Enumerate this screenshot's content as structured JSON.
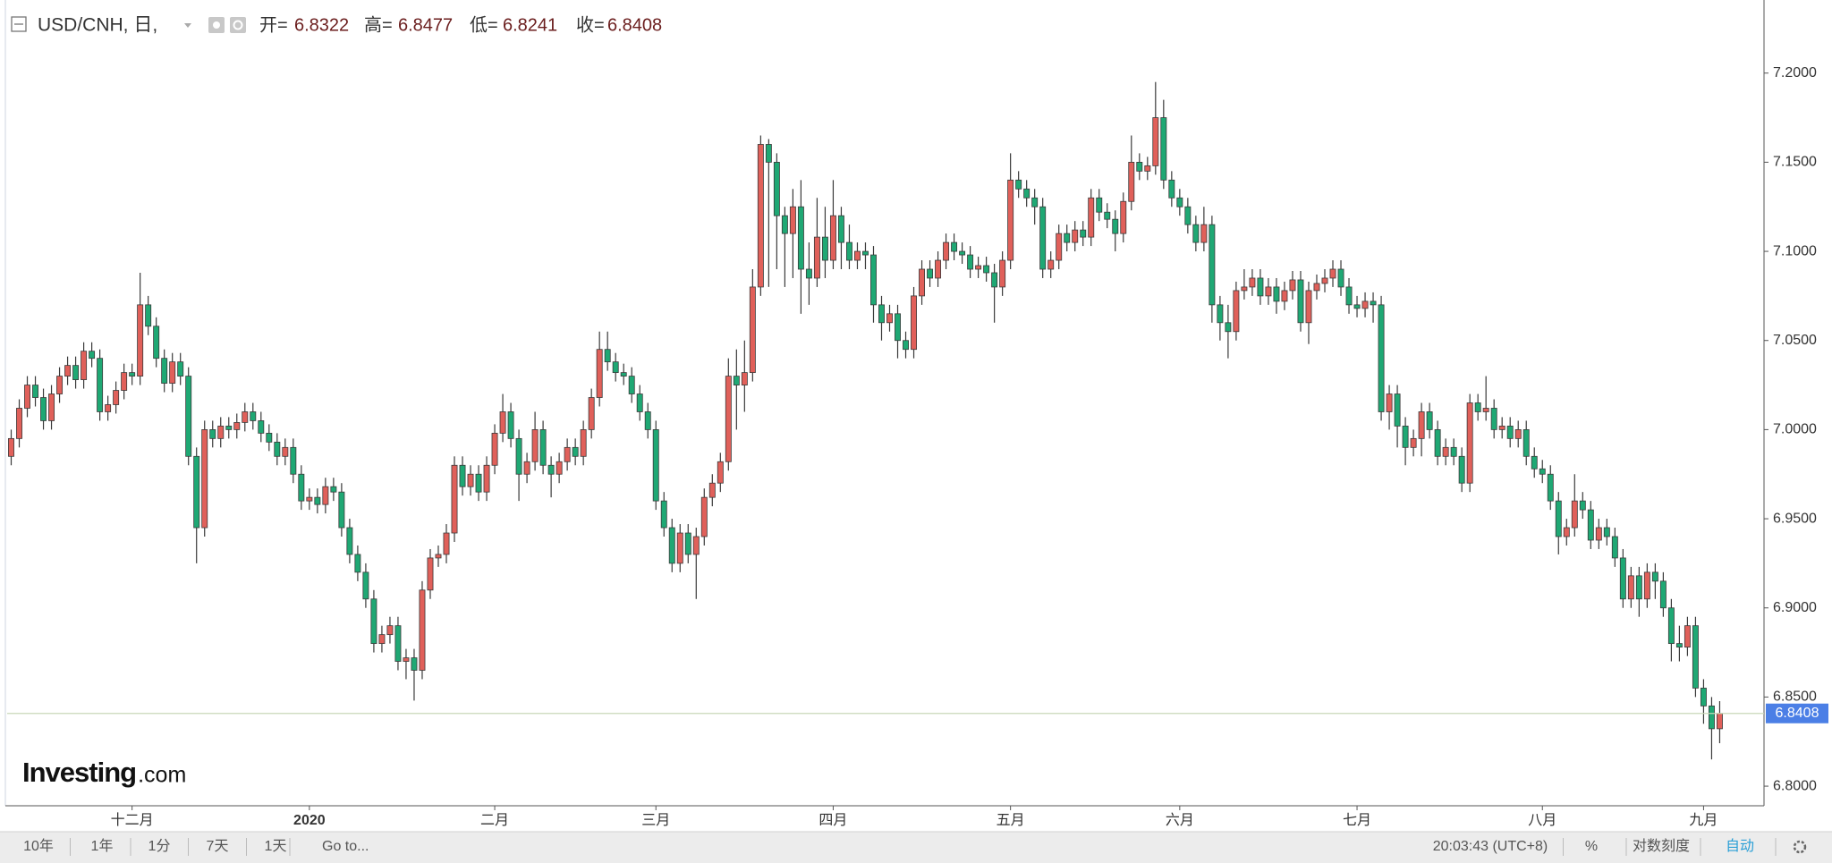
{
  "chart_data": {
    "type": "candlestick",
    "title": "USD/CNH, 日,",
    "ohlc_labels": [
      "开=",
      "高=",
      "低=",
      "收="
    ],
    "watermark": {
      "brand": "Investing",
      "suffix": ".com"
    },
    "up_color": "#e0605a",
    "down_color": "#1fa874",
    "last_price_color": "#4b7fe6",
    "grid": false,
    "ylim": [
      6.789,
      7.241
    ],
    "yticks": [
      {
        "value": 6.8,
        "label": "6.8000"
      },
      {
        "value": 6.85,
        "label": "6.8500"
      },
      {
        "value": 6.9,
        "label": "6.9000"
      },
      {
        "value": 6.95,
        "label": "6.9500"
      },
      {
        "value": 7.0,
        "label": "7.0000"
      },
      {
        "value": 7.05,
        "label": "7.0500"
      },
      {
        "value": 7.1,
        "label": "7.1000"
      },
      {
        "value": 7.15,
        "label": "7.1500"
      },
      {
        "value": 7.2,
        "label": "7.2000"
      }
    ],
    "categories": [
      null,
      null,
      null,
      null,
      null,
      null,
      null,
      null,
      null,
      null,
      null,
      null,
      null,
      null,
      null,
      "十二月",
      null,
      null,
      null,
      null,
      null,
      null,
      null,
      null,
      null,
      null,
      null,
      null,
      null,
      null,
      null,
      null,
      null,
      null,
      null,
      null,
      null,
      "2020",
      null,
      null,
      null,
      null,
      null,
      null,
      null,
      null,
      null,
      null,
      null,
      null,
      null,
      null,
      null,
      null,
      null,
      null,
      null,
      null,
      null,
      null,
      "二月",
      null,
      null,
      null,
      null,
      null,
      null,
      null,
      null,
      null,
      null,
      null,
      null,
      null,
      null,
      null,
      null,
      null,
      null,
      null,
      "三月",
      null,
      null,
      null,
      null,
      null,
      null,
      null,
      null,
      null,
      null,
      null,
      null,
      null,
      null,
      null,
      null,
      null,
      null,
      null,
      null,
      null,
      "四月",
      null,
      null,
      null,
      null,
      null,
      null,
      null,
      null,
      null,
      null,
      null,
      null,
      null,
      null,
      null,
      null,
      null,
      null,
      null,
      null,
      null,
      "五月",
      null,
      null,
      null,
      null,
      null,
      null,
      null,
      null,
      null,
      null,
      null,
      null,
      null,
      null,
      null,
      null,
      null,
      null,
      null,
      null,
      "六月",
      null,
      null,
      null,
      null,
      null,
      null,
      null,
      null,
      null,
      null,
      null,
      null,
      null,
      null,
      null,
      null,
      null,
      null,
      null,
      null,
      null,
      "七月",
      null,
      null,
      null,
      null,
      null,
      null,
      null,
      null,
      null,
      null,
      null,
      null,
      null,
      null,
      null,
      null,
      null,
      null,
      null,
      null,
      null,
      null,
      "八月",
      null,
      null,
      null,
      null,
      null,
      null,
      null,
      null,
      null,
      null,
      null,
      null,
      null,
      null,
      null,
      null,
      null,
      null,
      null,
      "九月",
      null,
      null
    ],
    "open": [
      6.985,
      6.995,
      7.012,
      7.025,
      7.018,
      7.005,
      7.02,
      7.03,
      7.036,
      7.028,
      7.044,
      7.04,
      7.01,
      7.014,
      7.022,
      7.032,
      7.03,
      7.07,
      7.058,
      7.04,
      7.026,
      7.038,
      7.03,
      6.985,
      6.945,
      7.0,
      6.995,
      7.002,
      7.0,
      7.004,
      7.01,
      7.005,
      6.998,
      6.993,
      6.985,
      6.99,
      6.975,
      6.96,
      6.962,
      6.958,
      6.968,
      6.965,
      6.945,
      6.93,
      6.92,
      6.905,
      6.88,
      6.885,
      6.89,
      6.87,
      6.872,
      6.865,
      6.91,
      6.928,
      6.93,
      6.942,
      6.98,
      6.968,
      6.975,
      6.965,
      6.98,
      6.998,
      7.01,
      6.995,
      6.975,
      6.982,
      7.0,
      6.98,
      6.975,
      6.982,
      6.99,
      6.985,
      7.0,
      7.018,
      7.045,
      7.038,
      7.032,
      7.03,
      7.02,
      7.01,
      7.0,
      6.96,
      6.945,
      6.925,
      6.942,
      6.93,
      6.94,
      6.962,
      6.97,
      6.982,
      7.03,
      7.025,
      7.032,
      7.08,
      7.16,
      7.15,
      7.12,
      7.11,
      7.125,
      7.09,
      7.085,
      7.108,
      7.095,
      7.12,
      7.105,
      7.095,
      7.1,
      7.098,
      7.07,
      7.06,
      7.065,
      7.05,
      7.045,
      7.075,
      7.09,
      7.085,
      7.095,
      7.105,
      7.1,
      7.098,
      7.09,
      7.092,
      7.088,
      7.08,
      7.095,
      7.14,
      7.135,
      7.13,
      7.125,
      7.09,
      7.095,
      7.11,
      7.105,
      7.112,
      7.108,
      7.13,
      7.122,
      7.118,
      7.11,
      7.128,
      7.15,
      7.145,
      7.148,
      7.175,
      7.14,
      7.13,
      7.125,
      7.115,
      7.105,
      7.115,
      7.07,
      7.06,
      7.055,
      7.078,
      7.08,
      7.085,
      7.075,
      7.08,
      7.072,
      7.078,
      7.084,
      7.06,
      7.078,
      7.082,
      7.085,
      7.09,
      7.08,
      7.07,
      7.068,
      7.072,
      7.07,
      7.01,
      7.02,
      7.002,
      6.99,
      6.995,
      7.01,
      7.0,
      6.985,
      6.99,
      6.985,
      6.97,
      7.015,
      7.01,
      7.012,
      7.0,
      7.002,
      6.995,
      7.0,
      6.985,
      6.978,
      6.975,
      6.96,
      6.94,
      6.945,
      6.96,
      6.955,
      6.938,
      6.945,
      6.94,
      6.928,
      6.905,
      6.918,
      6.905,
      6.92,
      6.915,
      6.9,
      6.88,
      6.878,
      6.89,
      6.855,
      6.845,
      6.8322
    ],
    "high": [
      7.0,
      7.017,
      7.03,
      7.03,
      7.023,
      7.025,
      7.035,
      7.041,
      7.041,
      7.049,
      7.049,
      7.045,
      7.019,
      7.027,
      7.037,
      7.037,
      7.088,
      7.075,
      7.063,
      7.045,
      7.043,
      7.043,
      7.035,
      6.99,
      7.005,
      7.005,
      7.007,
      7.007,
      7.009,
      7.015,
      7.015,
      7.01,
      7.003,
      6.998,
      6.995,
      6.995,
      6.98,
      6.967,
      6.967,
      6.973,
      6.973,
      6.97,
      6.95,
      6.935,
      6.925,
      6.91,
      6.89,
      6.895,
      6.895,
      6.877,
      6.877,
      6.915,
      6.933,
      6.935,
      6.947,
      6.985,
      6.985,
      6.98,
      6.98,
      6.985,
      7.003,
      7.02,
      7.015,
      7.0,
      6.987,
      7.01,
      7.005,
      6.985,
      6.987,
      6.995,
      6.995,
      7.005,
      7.023,
      7.055,
      7.055,
      7.043,
      7.037,
      7.035,
      7.025,
      7.015,
      7.005,
      6.965,
      6.95,
      6.947,
      6.947,
      6.945,
      6.967,
      6.975,
      6.987,
      7.04,
      7.045,
      7.05,
      7.09,
      7.165,
      7.163,
      7.155,
      7.125,
      7.135,
      7.14,
      7.105,
      7.13,
      7.125,
      7.14,
      7.125,
      7.115,
      7.105,
      7.105,
      7.103,
      7.075,
      7.07,
      7.07,
      7.055,
      7.08,
      7.095,
      7.095,
      7.1,
      7.11,
      7.11,
      7.105,
      7.103,
      7.097,
      7.097,
      7.093,
      7.1,
      7.155,
      7.145,
      7.14,
      7.135,
      7.13,
      7.1,
      7.115,
      7.115,
      7.117,
      7.117,
      7.135,
      7.135,
      7.127,
      7.123,
      7.133,
      7.165,
      7.155,
      7.153,
      7.195,
      7.185,
      7.145,
      7.135,
      7.13,
      7.12,
      7.125,
      7.12,
      7.075,
      7.07,
      7.083,
      7.09,
      7.09,
      7.09,
      7.085,
      7.085,
      7.083,
      7.089,
      7.089,
      7.083,
      7.087,
      7.09,
      7.095,
      7.095,
      7.085,
      7.075,
      7.077,
      7.077,
      7.075,
      7.025,
      7.025,
      7.007,
      7.0,
      7.015,
      7.015,
      7.005,
      6.995,
      6.995,
      6.99,
      7.02,
      7.02,
      7.03,
      7.017,
      7.007,
      7.007,
      7.005,
      7.005,
      6.99,
      6.983,
      6.98,
      6.965,
      6.95,
      6.975,
      6.965,
      6.96,
      6.95,
      6.95,
      6.945,
      6.933,
      6.923,
      6.923,
      6.925,
      6.925,
      6.92,
      6.905,
      6.89,
      6.895,
      6.895,
      6.86,
      6.85,
      6.8477
    ],
    "low": [
      6.98,
      6.99,
      7.007,
      7.013,
      7.0,
      7.0,
      7.015,
      7.025,
      7.023,
      7.023,
      7.035,
      7.005,
      7.005,
      7.009,
      7.017,
      7.025,
      7.025,
      7.053,
      7.035,
      7.021,
      7.021,
      7.025,
      6.98,
      6.925,
      6.94,
      6.99,
      6.99,
      6.995,
      6.995,
      6.999,
      7.0,
      6.993,
      6.988,
      6.98,
      6.98,
      6.97,
      6.955,
      6.955,
      6.953,
      6.953,
      6.96,
      6.94,
      6.925,
      6.915,
      6.9,
      6.875,
      6.875,
      6.88,
      6.865,
      6.86,
      6.848,
      6.86,
      6.905,
      6.923,
      6.925,
      6.937,
      6.963,
      6.963,
      6.96,
      6.96,
      6.975,
      6.993,
      6.99,
      6.96,
      6.97,
      6.977,
      6.975,
      6.962,
      6.97,
      6.977,
      6.98,
      6.98,
      6.995,
      7.013,
      7.033,
      7.027,
      7.025,
      7.015,
      7.005,
      6.995,
      6.955,
      6.94,
      6.92,
      6.92,
      6.925,
      6.905,
      6.935,
      6.957,
      6.965,
      6.977,
      7.0,
      7.01,
      7.027,
      7.075,
      7.08,
      7.09,
      7.08,
      7.085,
      7.065,
      7.07,
      7.08,
      7.085,
      7.09,
      7.09,
      7.09,
      7.09,
      7.09,
      7.06,
      7.05,
      7.055,
      7.04,
      7.04,
      7.04,
      7.07,
      7.08,
      7.08,
      7.09,
      7.095,
      7.093,
      7.085,
      7.085,
      7.083,
      7.06,
      7.075,
      7.09,
      7.13,
      7.125,
      7.115,
      7.085,
      7.085,
      7.09,
      7.1,
      7.1,
      7.103,
      7.103,
      7.117,
      7.113,
      7.1,
      7.105,
      7.123,
      7.14,
      7.14,
      7.143,
      7.135,
      7.125,
      7.12,
      7.11,
      7.1,
      7.1,
      7.06,
      7.05,
      7.04,
      7.05,
      7.073,
      7.075,
      7.07,
      7.07,
      7.065,
      7.067,
      7.073,
      7.055,
      7.048,
      7.073,
      7.077,
      7.08,
      7.075,
      7.065,
      7.063,
      7.063,
      7.06,
      7.005,
      7.0,
      6.99,
      6.98,
      6.985,
      6.985,
      6.995,
      6.98,
      6.98,
      6.98,
      6.965,
      6.965,
      7.005,
      7.005,
      6.995,
      6.995,
      6.99,
      6.99,
      6.98,
      6.973,
      6.97,
      6.955,
      6.93,
      6.935,
      6.94,
      6.95,
      6.933,
      6.933,
      6.935,
      6.923,
      6.9,
      6.9,
      6.895,
      6.9,
      6.905,
      6.895,
      6.87,
      6.87,
      6.873,
      6.85,
      6.835,
      6.815,
      6.8241
    ],
    "close": [
      6.995,
      7.012,
      7.025,
      7.018,
      7.005,
      7.02,
      7.03,
      7.036,
      7.028,
      7.044,
      7.04,
      7.01,
      7.014,
      7.022,
      7.032,
      7.03,
      7.07,
      7.058,
      7.04,
      7.026,
      7.038,
      7.03,
      6.985,
      6.945,
      7.0,
      6.995,
      7.002,
      7.0,
      7.004,
      7.01,
      7.005,
      6.998,
      6.993,
      6.985,
      6.99,
      6.975,
      6.96,
      6.962,
      6.958,
      6.968,
      6.965,
      6.945,
      6.93,
      6.92,
      6.905,
      6.88,
      6.885,
      6.89,
      6.87,
      6.872,
      6.865,
      6.91,
      6.928,
      6.93,
      6.942,
      6.98,
      6.968,
      6.975,
      6.965,
      6.98,
      6.998,
      7.01,
      6.995,
      6.975,
      6.982,
      7.0,
      6.98,
      6.975,
      6.982,
      6.99,
      6.985,
      7.0,
      7.018,
      7.045,
      7.038,
      7.032,
      7.03,
      7.02,
      7.01,
      7.0,
      6.96,
      6.945,
      6.925,
      6.942,
      6.93,
      6.94,
      6.962,
      6.97,
      6.982,
      7.03,
      7.025,
      7.032,
      7.08,
      7.16,
      7.15,
      7.12,
      7.11,
      7.125,
      7.09,
      7.085,
      7.108,
      7.095,
      7.12,
      7.105,
      7.095,
      7.1,
      7.098,
      7.07,
      7.06,
      7.065,
      7.05,
      7.045,
      7.075,
      7.09,
      7.085,
      7.095,
      7.105,
      7.1,
      7.098,
      7.09,
      7.092,
      7.088,
      7.08,
      7.095,
      7.14,
      7.135,
      7.13,
      7.125,
      7.09,
      7.095,
      7.11,
      7.105,
      7.112,
      7.108,
      7.13,
      7.122,
      7.118,
      7.11,
      7.128,
      7.15,
      7.145,
      7.148,
      7.175,
      7.14,
      7.13,
      7.125,
      7.115,
      7.105,
      7.115,
      7.07,
      7.06,
      7.055,
      7.078,
      7.08,
      7.085,
      7.075,
      7.08,
      7.072,
      7.078,
      7.084,
      7.06,
      7.078,
      7.082,
      7.085,
      7.09,
      7.08,
      7.07,
      7.068,
      7.072,
      7.07,
      7.01,
      7.02,
      7.002,
      6.99,
      6.995,
      7.01,
      7.0,
      6.985,
      6.99,
      6.985,
      6.97,
      7.015,
      7.01,
      7.012,
      7.0,
      7.002,
      6.995,
      7.0,
      6.985,
      6.978,
      6.975,
      6.96,
      6.94,
      6.945,
      6.96,
      6.955,
      6.938,
      6.945,
      6.94,
      6.928,
      6.905,
      6.918,
      6.905,
      6.92,
      6.915,
      6.9,
      6.88,
      6.878,
      6.89,
      6.855,
      6.845,
      6.8322,
      6.8408
    ]
  },
  "toolbar": {
    "left": [
      "10年",
      "1年",
      "1分",
      "7天",
      "1天",
      "Go to..."
    ],
    "right": [
      "20:03:43 (UTC+8)",
      "%",
      "对数刻度",
      "自动"
    ]
  }
}
